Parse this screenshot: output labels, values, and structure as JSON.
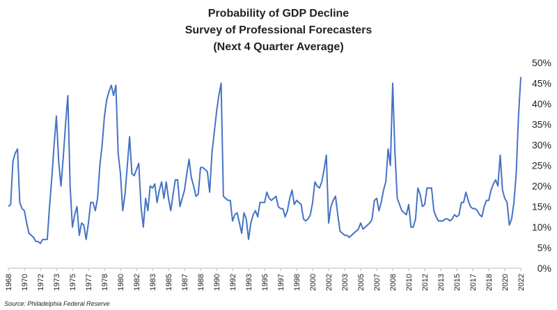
{
  "chart_data": {
    "type": "line",
    "title": "Probability of GDP Decline",
    "subtitle": [
      "Survey of Professional Forecasters",
      "(Next 4 Quarter Average)"
    ],
    "source": "Source: Philadelphia Federal Reserve",
    "categories": [
      "1968",
      null,
      null,
      null,
      null,
      null,
      null,
      "1970",
      null,
      null,
      null,
      null,
      null,
      null,
      "1972",
      null,
      null,
      null,
      null,
      null,
      null,
      "1973",
      null,
      null,
      null,
      null,
      null,
      null,
      "1975",
      null,
      null,
      null,
      null,
      null,
      null,
      "1977",
      null,
      null,
      null,
      null,
      null,
      null,
      "1978",
      null,
      null,
      null,
      null,
      null,
      null,
      "1980",
      null,
      null,
      null,
      null,
      null,
      null,
      "1982",
      null,
      null,
      null,
      null,
      null,
      null,
      "1983",
      null,
      null,
      null,
      null,
      null,
      null,
      "1985",
      null,
      null,
      null,
      null,
      null,
      null,
      "1987",
      null,
      null,
      null,
      null,
      null,
      null,
      "1988",
      null,
      null,
      null,
      null,
      null,
      null,
      "1990",
      null,
      null,
      null,
      null,
      null,
      null,
      "1992",
      null,
      null,
      null,
      null,
      null,
      null,
      "1993",
      null,
      null,
      null,
      null,
      null,
      null,
      "1995",
      null,
      null,
      null,
      null,
      null,
      null,
      "1997",
      null,
      null,
      null,
      null,
      null,
      null,
      "1998",
      null,
      null,
      null,
      null,
      null,
      null,
      "2000",
      null,
      null,
      null,
      null,
      null,
      null,
      "2002",
      null,
      null,
      null,
      null,
      null,
      null,
      "2003",
      null,
      null,
      null,
      null,
      null,
      null,
      "2005",
      null,
      null,
      null,
      null,
      null,
      null,
      "2007",
      null,
      null,
      null,
      null,
      null,
      null,
      "2008",
      null,
      null,
      null,
      null,
      null,
      null,
      "2010",
      null,
      null,
      null,
      null,
      null,
      null,
      "2012",
      null,
      null,
      null,
      null,
      null,
      null,
      "2013",
      null,
      null,
      null,
      null,
      null,
      null,
      "2015",
      null,
      null,
      null,
      null,
      null,
      null,
      "2017",
      null,
      null,
      null,
      null,
      null,
      null,
      "2018",
      null,
      null,
      null,
      null,
      null,
      null,
      "2020",
      null,
      null,
      null,
      null,
      null,
      null,
      "2022"
    ],
    "series": [
      {
        "name": "Probability of GDP Decline",
        "color": "#4472c4",
        "values": [
          15,
          15.5,
          26,
          28,
          29,
          16,
          14.5,
          14,
          11,
          8.5,
          8,
          7.5,
          6.5,
          6.5,
          6,
          7,
          7,
          7,
          15,
          22,
          30,
          37,
          26,
          20,
          27,
          35,
          42,
          20,
          10,
          13,
          15,
          8,
          11,
          10.5,
          7,
          11,
          16,
          16,
          14,
          17,
          25,
          30,
          37,
          41,
          43,
          44.5,
          42,
          44.5,
          28,
          23,
          14,
          18,
          25,
          32,
          23,
          22.5,
          24,
          25.5,
          15,
          10,
          17,
          14,
          20,
          19.5,
          20.5,
          16,
          19,
          21,
          17,
          21,
          17,
          14,
          18,
          21.5,
          21.5,
          15,
          17,
          19,
          23,
          26.5,
          22,
          20,
          17.5,
          18,
          24.5,
          24.5,
          24,
          23.5,
          18.5,
          28,
          33,
          38,
          42,
          45,
          17.5,
          17,
          16.5,
          16.5,
          11.5,
          13,
          13.5,
          11,
          8.5,
          13.5,
          12,
          7,
          11,
          13,
          14,
          12.5,
          16,
          16,
          16,
          18.5,
          17,
          16.5,
          17,
          17.5,
          15,
          14.5,
          14.5,
          12.5,
          14,
          17,
          19,
          15.5,
          16.5,
          16,
          15.5,
          12,
          11.5,
          12,
          13,
          16,
          21,
          20,
          19.5,
          21,
          24,
          27.5,
          11,
          15,
          16.5,
          17.5,
          13,
          9,
          8.5,
          8,
          8,
          7.5,
          8,
          8.5,
          9,
          9.5,
          11,
          9.5,
          10,
          10.5,
          11,
          12,
          16.5,
          17,
          14,
          16,
          19,
          21,
          29,
          25,
          45,
          28,
          17,
          15.5,
          14,
          13.5,
          13,
          15.5,
          10,
          10,
          12,
          19.5,
          18,
          15,
          15.5,
          19.5,
          19.5,
          19.5,
          14,
          12.5,
          11.5,
          11.5,
          11.5,
          12,
          12,
          11.5,
          12,
          13,
          12.5,
          13,
          16,
          16,
          18.5,
          16.5,
          15,
          14.5,
          14.5,
          14,
          13,
          12.5,
          15,
          16.5,
          16.5,
          19,
          20.5,
          21.5,
          20,
          27.5,
          19,
          17,
          16,
          10.5,
          12,
          16,
          23,
          37,
          46.5
        ]
      }
    ],
    "ylim": [
      0,
      50
    ],
    "yticks": [
      {
        "value": 0,
        "label": "0%"
      },
      {
        "value": 5,
        "label": "5%"
      },
      {
        "value": 10,
        "label": "10%"
      },
      {
        "value": 15,
        "label": "15%"
      },
      {
        "value": 20,
        "label": "20%"
      },
      {
        "value": 25,
        "label": "25%"
      },
      {
        "value": 30,
        "label": "30%"
      },
      {
        "value": 35,
        "label": "35%"
      },
      {
        "value": 40,
        "label": "40%"
      },
      {
        "value": 45,
        "label": "45%"
      },
      {
        "value": 50,
        "label": "50%"
      }
    ],
    "grid": false
  }
}
